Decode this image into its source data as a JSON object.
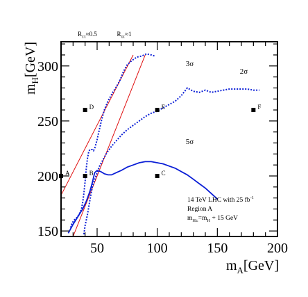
{
  "chart_data": {
    "type": "line",
    "xlabel": {
      "main": "m",
      "sub": "A",
      "unit": "[GeV]"
    },
    "ylabel": {
      "main": "m",
      "sub": "H",
      "unit": "[GeV]"
    },
    "xlim": [
      20,
      200
    ],
    "ylim": [
      145,
      322
    ],
    "x_ticks": [
      "50",
      "100",
      "150",
      "200"
    ],
    "y_ticks": [
      "150",
      "200",
      "250",
      "300"
    ],
    "x_tick_values": [
      50,
      100,
      150,
      200
    ],
    "y_tick_values": [
      150,
      200,
      250,
      300
    ],
    "grid": false,
    "curves": [
      {
        "name": "2σ",
        "style": "dotted",
        "label_at": [
          172,
          293
        ],
        "points": [
          [
            28,
            153
          ],
          [
            29,
            157
          ],
          [
            31,
            160
          ],
          [
            33,
            162
          ],
          [
            35,
            165
          ],
          [
            37,
            170
          ],
          [
            38,
            176
          ],
          [
            39,
            184
          ],
          [
            40,
            195
          ],
          [
            41,
            207
          ],
          [
            42,
            216
          ],
          [
            43,
            222
          ],
          [
            44,
            224
          ],
          [
            46,
            224
          ],
          [
            47,
            223
          ],
          [
            48,
            225
          ],
          [
            50,
            233
          ],
          [
            52,
            243
          ],
          [
            54,
            252
          ],
          [
            56,
            260
          ],
          [
            59,
            268
          ],
          [
            63,
            276
          ],
          [
            66,
            281
          ],
          [
            69,
            287
          ],
          [
            72,
            295
          ],
          [
            75,
            301
          ],
          [
            79,
            305
          ],
          [
            83,
            308
          ],
          [
            87,
            309
          ],
          [
            91,
            311
          ],
          [
            95,
            310
          ],
          [
            98,
            309
          ]
        ]
      },
      {
        "name": "3σ",
        "style": "dotted",
        "label_at": [
          127,
          300
        ],
        "points": [
          [
            39,
            147
          ],
          [
            40,
            155
          ],
          [
            42,
            165
          ],
          [
            44,
            178
          ],
          [
            46,
            190
          ],
          [
            49,
            200
          ],
          [
            52,
            209
          ],
          [
            55,
            215
          ],
          [
            58,
            221
          ],
          [
            62,
            227
          ],
          [
            66,
            232
          ],
          [
            70,
            237
          ],
          [
            75,
            242
          ],
          [
            80,
            246
          ],
          [
            85,
            250
          ],
          [
            90,
            254
          ],
          [
            95,
            257
          ],
          [
            100,
            259
          ],
          [
            105,
            262
          ],
          [
            110,
            265
          ],
          [
            115,
            268
          ],
          [
            120,
            273
          ],
          [
            125,
            280
          ],
          [
            130,
            277
          ],
          [
            135,
            276
          ],
          [
            140,
            278
          ],
          [
            145,
            276
          ],
          [
            150,
            277
          ],
          [
            155,
            278
          ],
          [
            160,
            279
          ],
          [
            165,
            279
          ],
          [
            170,
            279
          ],
          [
            175,
            279
          ],
          [
            180,
            278
          ],
          [
            185,
            278
          ]
        ]
      },
      {
        "name": "5σ",
        "style": "solid",
        "label_at": [
          127,
          229
        ],
        "points": [
          [
            26,
            148
          ],
          [
            30,
            156
          ],
          [
            34,
            163
          ],
          [
            38,
            170
          ],
          [
            41,
            177
          ],
          [
            44,
            186
          ],
          [
            46,
            194
          ],
          [
            48,
            203
          ],
          [
            50,
            205
          ],
          [
            53,
            204
          ],
          [
            56,
            202
          ],
          [
            59,
            201
          ],
          [
            62,
            201
          ],
          [
            66,
            203
          ],
          [
            70,
            205
          ],
          [
            75,
            208
          ],
          [
            80,
            210
          ],
          [
            85,
            212
          ],
          [
            90,
            213
          ],
          [
            95,
            213
          ],
          [
            100,
            212
          ],
          [
            105,
            211
          ],
          [
            110,
            209
          ],
          [
            115,
            207
          ],
          [
            120,
            204
          ],
          [
            125,
            201
          ],
          [
            130,
            197
          ],
          [
            135,
            193
          ],
          [
            140,
            189
          ],
          [
            145,
            184
          ],
          [
            150,
            179
          ]
        ]
      }
    ],
    "ratio_lines": [
      {
        "label_main": "R",
        "label_sub": "ττ",
        "label_rest": "≈0.5",
        "from": [
          0,
          140
        ],
        "to": [
          80,
          310
        ]
      },
      {
        "label_main": "R",
        "label_sub": "ττ",
        "label_rest": "≈1",
        "from": [
          30,
          145
        ],
        "to": [
          90,
          310
        ]
      }
    ],
    "benchmark_points": [
      {
        "label": "A",
        "x": 20,
        "y": 200
      },
      {
        "label": "B",
        "x": 40,
        "y": 200
      },
      {
        "label": "C",
        "x": 100,
        "y": 200
      },
      {
        "label": "D",
        "x": 40,
        "y": 260
      },
      {
        "label": "E",
        "x": 100,
        "y": 260
      },
      {
        "label": "F",
        "x": 180,
        "y": 260
      }
    ],
    "annotation_lines": [
      {
        "main": "14 TeV LHC with 25 fb",
        "sup": "-1",
        "sub": "",
        "rest": ""
      },
      {
        "main": "Region A",
        "sup": "",
        "sub": "",
        "rest": ""
      },
      {
        "main": "m",
        "sup": "",
        "sub": "H±",
        "rest": "=m"
      },
      {
        "main": "",
        "sup": "",
        "sub": "H",
        "rest": " + 15 GeV"
      }
    ]
  },
  "colors": {
    "ratio_line": "#e01010",
    "curve": "#0a1ed6",
    "frame": "#000000"
  }
}
